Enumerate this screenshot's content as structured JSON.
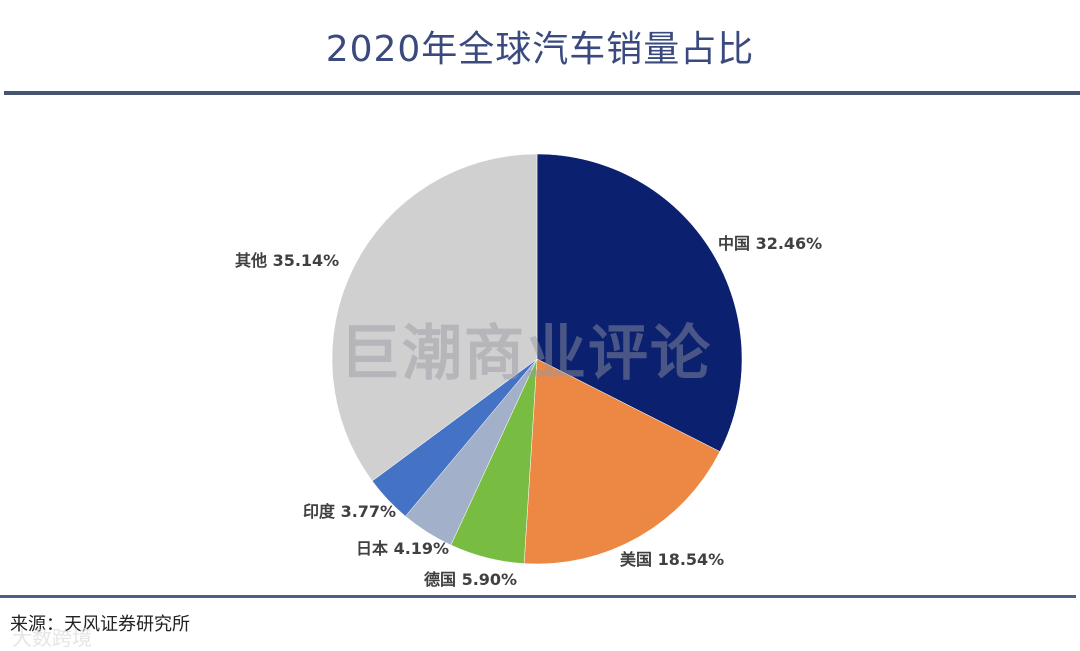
{
  "title": "2020年全球汽车销量占比",
  "source": "来源：天风证券研究所",
  "watermark": "巨潮商业评论",
  "corner_watermark": "大数跨境",
  "chart_data": {
    "type": "pie",
    "title": "2020年全球汽车销量占比",
    "unit": "%",
    "start_angle": "12 o'clock",
    "direction": "clockwise",
    "categories": [
      "中国",
      "美国",
      "德国",
      "日本",
      "印度",
      "其他"
    ],
    "values": [
      32.46,
      18.54,
      5.9,
      4.19,
      3.77,
      35.14
    ],
    "colors": [
      "#0b2170",
      "#ec8844",
      "#78bd42",
      "#a2b0c9",
      "#4472c4",
      "#d0d0d0"
    ],
    "labels": [
      "中国 32.46%",
      "美国 18.54%",
      "德国 5.90%",
      "日本 4.19%",
      "印度 3.77%",
      "其他 35.14%"
    ],
    "source": "来源：天风证券研究所"
  },
  "labels": {
    "china": "中国 32.46%",
    "usa": "美国 18.54%",
    "germany": "德国 5.90%",
    "japan": "日本 4.19%",
    "india": "印度 3.77%",
    "other": "其他 35.14%"
  }
}
